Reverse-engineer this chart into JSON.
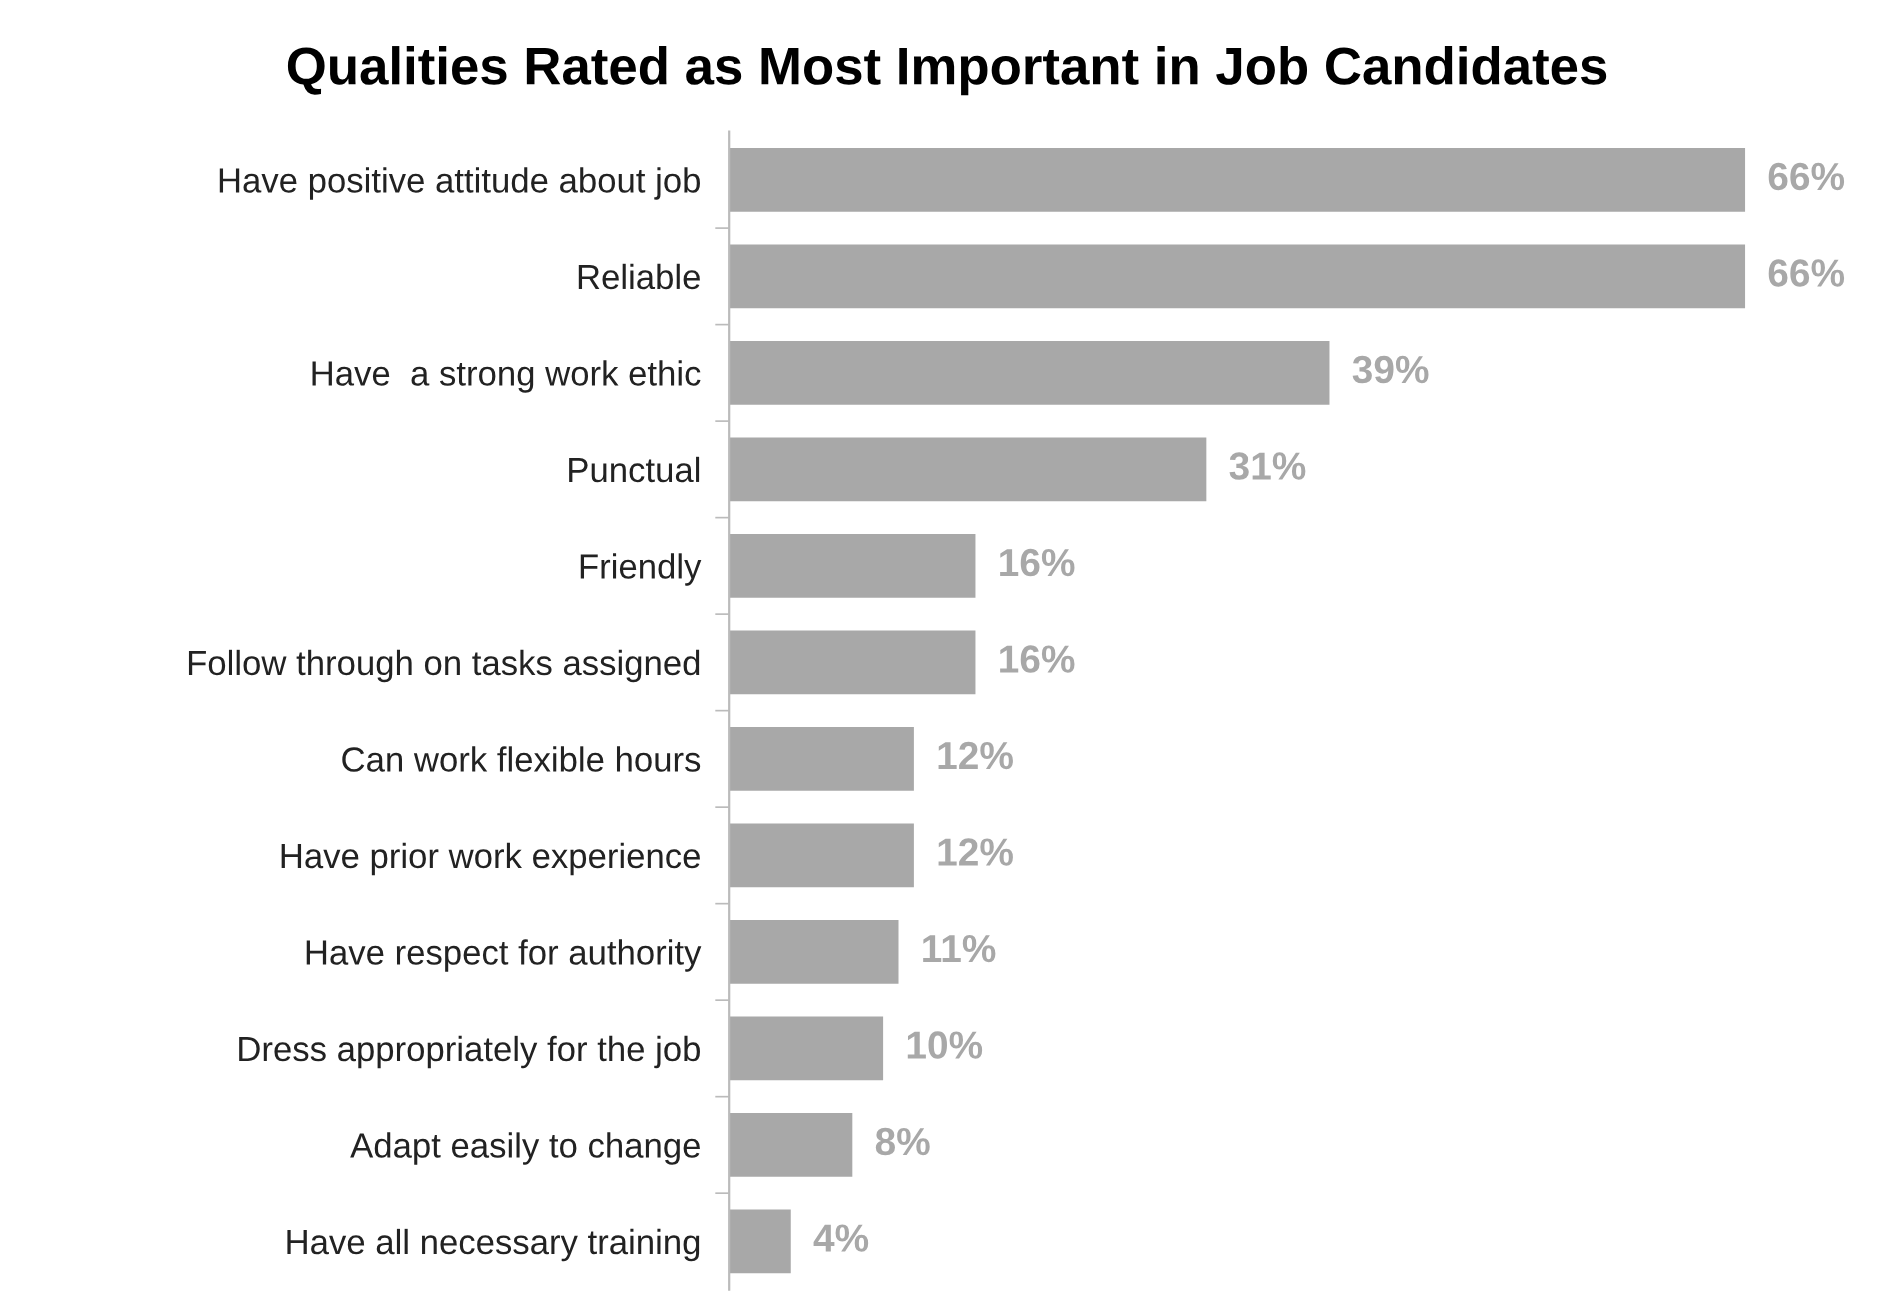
{
  "chart_data": {
    "type": "bar",
    "orientation": "horizontal",
    "title": "Qualities Rated as Most Important in Job Candidates",
    "categories": [
      "Have positive attitude about job",
      "Reliable",
      "Have  a strong work ethic",
      "Punctual",
      "Friendly",
      "Follow through on tasks assigned",
      "Can work flexible hours",
      "Have prior work experience",
      "Have respect for authority",
      "Dress appropriately for the job",
      "Adapt easily to change",
      "Have all necessary training"
    ],
    "values": [
      66,
      66,
      39,
      31,
      16,
      16,
      12,
      12,
      11,
      10,
      8,
      4
    ],
    "value_labels": [
      "66%",
      "66%",
      "39%",
      "31%",
      "16%",
      "16%",
      "12%",
      "12%",
      "11%",
      "10%",
      "8%",
      "4%"
    ],
    "color": "#a8a8a8",
    "grid": false,
    "legend": false
  }
}
